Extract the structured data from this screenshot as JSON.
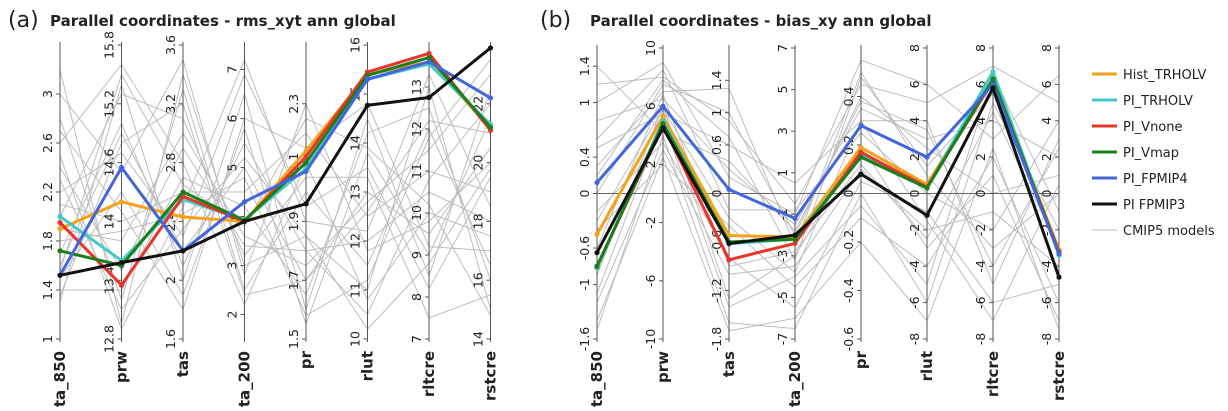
{
  "legend": [
    {
      "name": "Hist_TRHOLV",
      "color": "#f5a21a",
      "width": 3
    },
    {
      "name": "PI_TRHOLV",
      "color": "#45c8c8",
      "width": 3
    },
    {
      "name": "PI_Vnone",
      "color": "#e8342a",
      "width": 3
    },
    {
      "name": "PI_Vmap",
      "color": "#1b7f1b",
      "width": 3
    },
    {
      "name": "PI_FPMIP4",
      "color": "#4466dd",
      "width": 3
    },
    {
      "name": "PI FPMIP3",
      "color": "#111111",
      "width": 3
    },
    {
      "name": "CMIP5 models",
      "color": "#bdbdbd",
      "width": 1
    }
  ],
  "chart_data": [
    {
      "type": "parallel-coordinates",
      "letter": "(a)",
      "title": "Parallel coordinates -  rms_xyt ann global",
      "axes": [
        {
          "name": "ta_850",
          "min": 1.0,
          "max": 3.4,
          "ticks": [
            "1",
            "1.4",
            "1.8",
            "2.2",
            "2.6",
            "3"
          ]
        },
        {
          "name": "prw",
          "min": 12.8,
          "max": 15.8,
          "ticks": [
            "12.8",
            "13.4",
            "14",
            "14.6",
            "15.2",
            "15.8"
          ]
        },
        {
          "name": "tas",
          "min": 1.6,
          "max": 3.6,
          "ticks": [
            "1.6",
            "2",
            "2.4",
            "2.8",
            "3.2",
            "3.6"
          ]
        },
        {
          "name": "ta_200",
          "min": 1.5,
          "max": 7.5,
          "ticks": [
            "2",
            "3",
            "4",
            "5",
            "6",
            "7"
          ]
        },
        {
          "name": "pr",
          "min": 1.5,
          "max": 2.5,
          "ticks": [
            "1.5",
            "1.7",
            "1.9",
            "2.1",
            "2.3"
          ]
        },
        {
          "name": "rlut",
          "min": 10,
          "max": 16,
          "ticks": [
            "10",
            "11",
            "12",
            "13",
            "14",
            "15",
            "16"
          ]
        },
        {
          "name": "rltcre",
          "min": 7,
          "max": 14,
          "ticks": [
            "7",
            "8",
            "9",
            "10",
            "11",
            "12",
            "13"
          ]
        },
        {
          "name": "rstcre",
          "min": 14,
          "max": 24,
          "ticks": [
            "14",
            "16",
            "18",
            "20",
            "22"
          ]
        }
      ],
      "series": [
        {
          "name": "Hist_TRHOLV",
          "values": [
            1.9,
            14.2,
            2.43,
            3.9,
            2.14,
            15.4,
            13.6,
            21.2
          ]
        },
        {
          "name": "PI_TRHOLV",
          "values": [
            2.0,
            13.6,
            2.55,
            3.93,
            2.08,
            15.3,
            13.55,
            21.3
          ]
        },
        {
          "name": "PI_Vnone",
          "values": [
            1.95,
            13.35,
            2.57,
            3.9,
            2.12,
            15.45,
            13.8,
            21.1
          ]
        },
        {
          "name": "PI_Vmap",
          "values": [
            1.72,
            13.55,
            2.6,
            3.92,
            2.1,
            15.38,
            13.7,
            21.2
          ]
        },
        {
          "name": "PI_FPMIP4",
          "values": [
            1.52,
            14.55,
            2.2,
            4.3,
            2.07,
            15.3,
            13.6,
            22.2
          ]
        },
        {
          "name": "PI FPMIP3",
          "values": [
            1.52,
            13.58,
            2.2,
            3.9,
            1.96,
            14.77,
            12.75,
            23.9
          ]
        }
      ],
      "cmip5_lines": [
        [
          2.4,
          13.5,
          2.9,
          3.4,
          1.8,
          12.0,
          10.5,
          18.0
        ],
        [
          1.6,
          14.9,
          2.2,
          5.0,
          1.7,
          13.0,
          9.5,
          20.5
        ],
        [
          2.8,
          13.2,
          3.3,
          2.5,
          2.0,
          11.5,
          12.0,
          16.5
        ],
        [
          1.3,
          15.4,
          2.0,
          6.5,
          1.6,
          14.5,
          8.5,
          22.5
        ],
        [
          2.1,
          14.0,
          2.6,
          4.5,
          2.2,
          12.5,
          11.0,
          19.0
        ],
        [
          3.2,
          12.95,
          3.4,
          3.0,
          1.85,
          11.0,
          13.0,
          15.0
        ],
        [
          1.5,
          14.3,
          1.9,
          5.8,
          1.55,
          13.8,
          9.0,
          21.5
        ],
        [
          2.6,
          15.6,
          2.8,
          2.2,
          2.1,
          10.8,
          10.0,
          17.5
        ],
        [
          1.9,
          13.8,
          3.0,
          3.6,
          1.75,
          12.8,
          11.5,
          23.0
        ],
        [
          2.2,
          14.7,
          2.3,
          6.9,
          1.95,
          13.5,
          8.2,
          19.5
        ],
        [
          1.4,
          13.3,
          2.7,
          4.2,
          1.65,
          14.2,
          12.5,
          16.0
        ],
        [
          3.0,
          14.5,
          3.5,
          2.8,
          2.3,
          11.8,
          9.8,
          20.0
        ],
        [
          1.7,
          15.0,
          2.1,
          5.5,
          1.8,
          10.5,
          10.8,
          22.0
        ],
        [
          2.5,
          12.9,
          2.5,
          7.2,
          1.9,
          12.2,
          13.3,
          18.5
        ],
        [
          2.0,
          15.3,
          3.1,
          3.2,
          2.05,
          13.3,
          7.5,
          15.5
        ],
        [
          1.8,
          13.9,
          2.45,
          4.8,
          1.58,
          11.2,
          11.8,
          23.5
        ],
        [
          2.7,
          14.1,
          1.8,
          6.0,
          2.15,
          14.8,
          9.2,
          17.0
        ],
        [
          1.35,
          14.8,
          3.2,
          2.4,
          1.7,
          12.6,
          12.2,
          21.0
        ],
        [
          2.3,
          13.1,
          2.35,
          5.2,
          1.85,
          10.2,
          8.8,
          19.8
        ],
        [
          1.55,
          15.5,
          2.65,
          3.8,
          2.25,
          13.9,
          10.2,
          14.8
        ]
      ]
    },
    {
      "type": "parallel-coordinates",
      "letter": "(b)",
      "title": "Parallel coordinates -  bias_xy ann global",
      "axes": [
        {
          "name": "ta_850",
          "min": -1.6,
          "max": 1.6,
          "ticks": [
            "-1.6",
            "-1",
            "-0.6",
            "0",
            "0.4",
            "1",
            "1.4"
          ]
        },
        {
          "name": "prw",
          "min": -10,
          "max": 10,
          "ticks": [
            "-10",
            "-6",
            "-2",
            "2",
            "6",
            "10"
          ]
        },
        {
          "name": "tas",
          "min": -1.8,
          "max": 1.8,
          "ticks": [
            "-1.8",
            "-1.2",
            "-0.6",
            "0",
            "0.6",
            "1",
            "1.4"
          ]
        },
        {
          "name": "ta_200",
          "min": -7,
          "max": 7,
          "ticks": [
            "-7",
            "-5",
            "-3",
            "-1",
            "1",
            "3",
            "5",
            "7"
          ]
        },
        {
          "name": "pr",
          "min": -0.6,
          "max": 0.6,
          "ticks": [
            "-0.6",
            "-0.4",
            "-0.2",
            "0",
            "0.2",
            "0.4"
          ]
        },
        {
          "name": "rlut",
          "min": -8,
          "max": 8,
          "ticks": [
            "-8",
            "-6",
            "-4",
            "-2",
            "0",
            "2",
            "4",
            "6",
            "8"
          ]
        },
        {
          "name": "rltcre",
          "min": -8,
          "max": 8,
          "ticks": [
            "-8",
            "-6",
            "-4",
            "-2",
            "0",
            "2",
            "4",
            "6",
            "8"
          ]
        },
        {
          "name": "rstcre",
          "min": -8,
          "max": 8,
          "ticks": [
            "-8",
            "-6",
            "-4",
            "-2",
            "0",
            "2",
            "4",
            "6",
            "8"
          ]
        }
      ],
      "series": [
        {
          "name": "Hist_TRHOLV",
          "values": [
            -0.45,
            5.3,
            -0.52,
            -2.1,
            0.19,
            0.5,
            6.3,
            -3.1
          ]
        },
        {
          "name": "PI_TRHOLV",
          "values": [
            -0.82,
            5.0,
            -0.62,
            -2.2,
            0.16,
            0.3,
            6.7,
            -3.4
          ]
        },
        {
          "name": "PI_Vnone",
          "values": [
            -0.8,
            4.7,
            -0.82,
            -2.4,
            0.17,
            0.35,
            6.2,
            -3.2
          ]
        },
        {
          "name": "PI_Vmap",
          "values": [
            -0.8,
            4.8,
            -0.6,
            -2.2,
            0.15,
            0.3,
            6.3,
            -3.3
          ]
        },
        {
          "name": "PI_FPMIP4",
          "values": [
            0.12,
            6.0,
            0.05,
            -1.2,
            0.28,
            2.0,
            6.0,
            -3.3
          ]
        },
        {
          "name": "PI FPMIP3",
          "values": [
            -0.65,
            4.5,
            -0.62,
            -2.0,
            0.08,
            -1.2,
            5.8,
            -4.6
          ]
        }
      ],
      "cmip5_lines": [
        [
          0.8,
          6.5,
          0.3,
          -1.5,
          0.35,
          3.0,
          4.0,
          2.0
        ],
        [
          -1.2,
          3.0,
          -1.0,
          -3.5,
          0.1,
          -2.0,
          -1.0,
          -4.0
        ],
        [
          1.2,
          8.0,
          0.9,
          -0.5,
          0.45,
          5.0,
          7.0,
          5.0
        ],
        [
          -0.4,
          2.0,
          -0.4,
          -4.5,
          -0.1,
          -4.0,
          2.0,
          -6.0
        ],
        [
          0.3,
          7.0,
          1.3,
          -2.5,
          0.5,
          1.0,
          -3.0,
          0.0
        ],
        [
          -1.5,
          4.0,
          -1.6,
          -6.5,
          0.0,
          -6.0,
          5.0,
          -2.0
        ],
        [
          0.5,
          5.5,
          0.6,
          0.5,
          0.3,
          4.0,
          -5.0,
          3.0
        ],
        [
          -0.9,
          6.0,
          -1.3,
          -3.0,
          0.2,
          -3.0,
          1.0,
          -7.0
        ],
        [
          1.0,
          9.0,
          0.2,
          -1.0,
          0.55,
          6.0,
          3.0,
          6.5
        ],
        [
          -0.2,
          3.5,
          -0.8,
          -5.5,
          0.05,
          -1.0,
          -6.0,
          -5.0
        ],
        [
          0.0,
          7.5,
          1.0,
          -2.0,
          0.4,
          2.5,
          0.0,
          1.0
        ],
        [
          -1.1,
          5.0,
          -1.4,
          -4.0,
          -0.05,
          -5.0,
          6.5,
          -1.0
        ],
        [
          0.6,
          8.5,
          -0.2,
          -0.8,
          0.25,
          0.0,
          -2.0,
          4.0
        ],
        [
          -0.6,
          6.8,
          -0.9,
          -2.8,
          0.12,
          -2.5,
          4.5,
          -3.0
        ],
        [
          1.4,
          4.2,
          0.4,
          -1.8,
          0.38,
          3.5,
          -4.0,
          2.5
        ],
        [
          -1.4,
          2.5,
          -1.7,
          -6.0,
          -0.2,
          -7.0,
          2.5,
          -7.5
        ],
        [
          0.2,
          7.8,
          0.7,
          -3.2,
          0.48,
          1.5,
          5.5,
          -4.5
        ],
        [
          -0.3,
          5.8,
          -0.3,
          -3.8,
          0.3,
          -1.5,
          -7.0,
          0.5
        ]
      ]
    }
  ]
}
